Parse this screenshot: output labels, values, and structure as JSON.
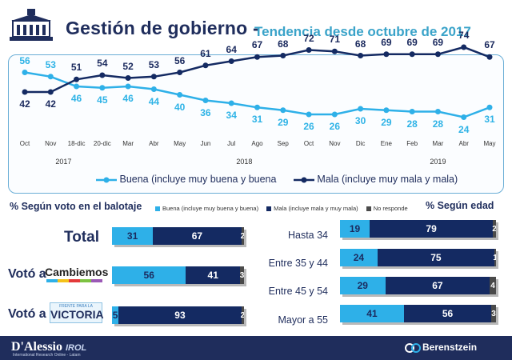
{
  "header": {
    "title": "Gestión de gobierno -",
    "subtitle": "Tendencia desde octubre de 2017"
  },
  "colors": {
    "buena": "#2eb0e8",
    "mala": "#142a62",
    "no_responde": "#4a4a4a"
  },
  "chart_data": [
    {
      "type": "line",
      "x": [
        "Oct",
        "Nov",
        "18-dic",
        "20-dic",
        "Mar",
        "Abr",
        "May",
        "Jun",
        "Jul",
        "Ago",
        "Sep",
        "Oct",
        "Nov",
        "Dic",
        "Ene",
        "Feb",
        "Mar",
        "Abr",
        "May"
      ],
      "year_labels": [
        {
          "label": "2017",
          "x_index": 1.5
        },
        {
          "label": "2018",
          "x_index": 8.5
        },
        {
          "label": "2019",
          "x_index": 16
        }
      ],
      "series": [
        {
          "name": "Buena (incluye muy buena y buena",
          "values": [
            56,
            53,
            46,
            45,
            46,
            44,
            40,
            36,
            34,
            31,
            29,
            26,
            26,
            30,
            29,
            28,
            28,
            24,
            31
          ]
        },
        {
          "name": "Mala (incluye muy mala y mala)",
          "values": [
            42,
            42,
            51,
            54,
            52,
            53,
            56,
            61,
            64,
            67,
            68,
            72,
            71,
            68,
            69,
            69,
            69,
            74,
            67
          ]
        }
      ],
      "ylim": [
        0,
        100
      ]
    },
    {
      "type": "bar",
      "stacked": true,
      "title": "% Según voto en el balotaje",
      "categories": [
        "Total",
        "Votó a",
        "Votó a"
      ],
      "series": [
        {
          "name": "Buena (incluye muy buena y buena)",
          "values": [
            31,
            56,
            5
          ]
        },
        {
          "name": "Mala (incluye mala y muy mala)",
          "values": [
            67,
            41,
            93
          ]
        },
        {
          "name": "No responde",
          "values": [
            2,
            3,
            2
          ]
        }
      ]
    },
    {
      "type": "bar",
      "stacked": true,
      "title": "% Según edad",
      "categories": [
        "Hasta 34",
        "Entre 35 y 44",
        "Entre 45 y 54",
        "Mayor a 55"
      ],
      "series": [
        {
          "name": "Buena",
          "values": [
            19,
            24,
            29,
            41
          ]
        },
        {
          "name": "Mala",
          "values": [
            79,
            75,
            67,
            56
          ]
        },
        {
          "name": "No responde",
          "values": [
            2,
            1,
            4,
            3
          ]
        }
      ]
    }
  ],
  "logos": {
    "cambiemos": "Cambiemos",
    "frente_top": "FRENTE PARA LA",
    "frente_main": "VICTORIA",
    "left": "D'Alessio",
    "left_accent": "IROL",
    "left_sub": "International Research Online - Latam",
    "right": "Berenstzein"
  },
  "icons": [
    "building-icon",
    "berenstzein-logo-icon"
  ]
}
